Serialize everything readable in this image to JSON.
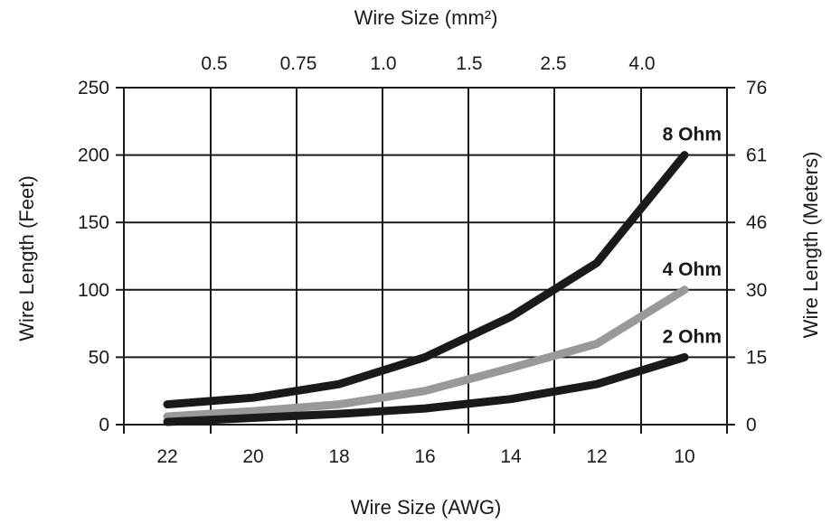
{
  "chart_data": {
    "type": "line",
    "top_xlabel": "Wire Size (mm²)",
    "top_ticks": [
      "0.5",
      "0.75",
      "1.0",
      "1.5",
      "2.5",
      "4.0"
    ],
    "xlabel": "Wire Size (AWG)",
    "categories": [
      "22",
      "20",
      "18",
      "16",
      "14",
      "12",
      "10"
    ],
    "ylabel": "Wire Length (Feet)",
    "yticks": [
      "0",
      "50",
      "100",
      "150",
      "200",
      "250"
    ],
    "ylim": [
      0,
      250
    ],
    "y2label": "Wire Length (Meters)",
    "y2ticks": [
      "0",
      "15",
      "30",
      "46",
      "61",
      "76"
    ],
    "grid": true,
    "series": [
      {
        "name": "8 Ohm",
        "color": "#1a1a1a",
        "values": [
          15,
          20,
          30,
          50,
          80,
          120,
          200
        ]
      },
      {
        "name": "4 Ohm",
        "color": "#999999",
        "values": [
          6,
          10,
          15,
          25,
          42,
          60,
          100
        ]
      },
      {
        "name": "2 Ohm",
        "color": "#1a1a1a",
        "values": [
          2,
          5,
          8,
          12,
          19,
          30,
          50
        ]
      }
    ]
  }
}
